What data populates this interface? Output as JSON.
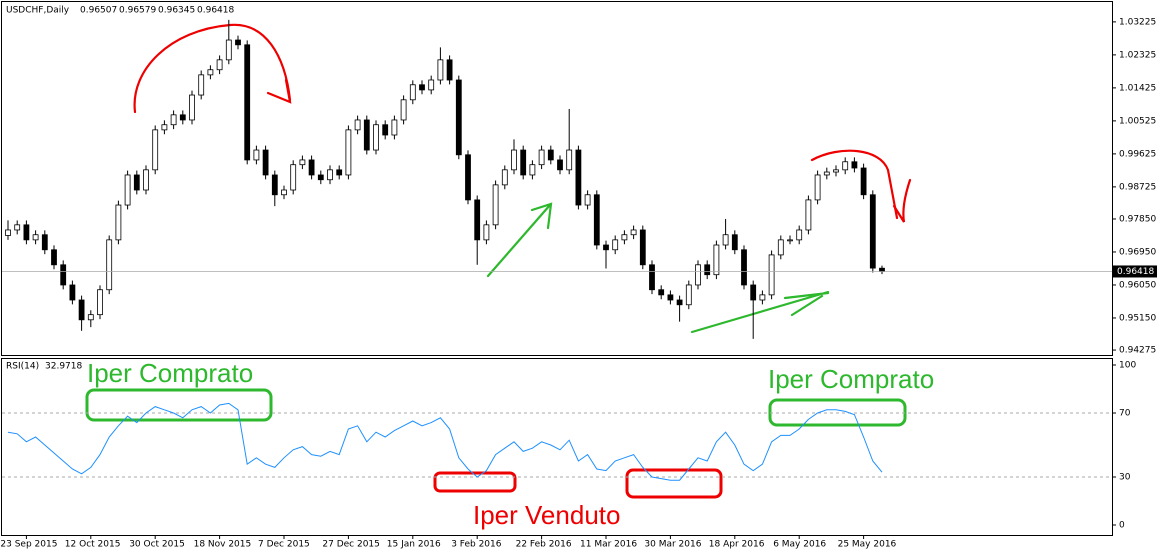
{
  "chart_data": [
    {
      "type": "candlestick",
      "title": "USDCHF,Daily",
      "ohlc": [
        [
          0.974,
          0.9781,
          0.9728,
          0.9755
        ],
        [
          0.9755,
          0.9781,
          0.9743,
          0.9769
        ],
        [
          0.9769,
          0.9781,
          0.9716,
          0.9728
        ],
        [
          0.9728,
          0.9754,
          0.9716,
          0.9742
        ],
        [
          0.9742,
          0.9754,
          0.9689,
          0.9701
        ],
        [
          0.9701,
          0.9713,
          0.9648,
          0.966
        ],
        [
          0.966,
          0.9672,
          0.9593,
          0.9605
        ],
        [
          0.9605,
          0.9617,
          0.9552,
          0.9564
        ],
        [
          0.9564,
          0.9576,
          0.948,
          0.951
        ],
        [
          0.951,
          0.9536,
          0.949,
          0.9524
        ],
        [
          0.9524,
          0.9604,
          0.9512,
          0.9592
        ],
        [
          0.9592,
          0.974,
          0.958,
          0.9728
        ],
        [
          0.9728,
          0.9835,
          0.9716,
          0.9823
        ],
        [
          0.9823,
          0.9917,
          0.9811,
          0.9905
        ],
        [
          0.9905,
          0.9917,
          0.9852,
          0.9864
        ],
        [
          0.9864,
          0.9931,
          0.9852,
          0.9919
        ],
        [
          0.9919,
          1.004,
          0.9907,
          1.0028
        ],
        [
          1.0028,
          1.0054,
          1.0016,
          1.0042
        ],
        [
          1.0042,
          1.0081,
          1.003,
          1.0069
        ],
        [
          1.0069,
          1.0081,
          1.0043,
          1.0055
        ],
        [
          1.0055,
          1.0135,
          1.0043,
          1.0123
        ],
        [
          1.0123,
          1.019,
          1.0111,
          1.0178
        ],
        [
          1.0178,
          1.0204,
          1.0166,
          1.0192
        ],
        [
          1.0192,
          1.0231,
          1.018,
          1.0219
        ],
        [
          1.0219,
          1.0328,
          1.0207,
          1.0273
        ],
        [
          1.0273,
          1.0285,
          1.0248,
          1.026
        ],
        [
          1.026,
          1.0272,
          0.9934,
          0.9946
        ],
        [
          0.9946,
          0.9985,
          0.9934,
          0.9973
        ],
        [
          0.9973,
          0.9985,
          0.9893,
          0.9905
        ],
        [
          0.9905,
          0.9917,
          0.982,
          0.9851
        ],
        [
          0.9851,
          0.9876,
          0.9839,
          0.9864
        ],
        [
          0.9864,
          0.9945,
          0.9852,
          0.9933
        ],
        [
          0.9933,
          0.9958,
          0.9921,
          0.9946
        ],
        [
          0.9946,
          0.9958,
          0.9893,
          0.9905
        ],
        [
          0.9905,
          0.9917,
          0.988,
          0.9892
        ],
        [
          0.9892,
          0.9931,
          0.988,
          0.9919
        ],
        [
          0.9919,
          0.9931,
          0.9893,
          0.9905
        ],
        [
          0.9905,
          1.004,
          0.9893,
          1.0028
        ],
        [
          1.0028,
          1.0067,
          1.0016,
          1.0055
        ],
        [
          1.0055,
          1.0067,
          0.9961,
          0.9973
        ],
        [
          0.9973,
          1.0054,
          0.9961,
          1.0042
        ],
        [
          1.0042,
          1.0054,
          1.0002,
          1.0014
        ],
        [
          1.0014,
          1.0067,
          1.0002,
          1.0055
        ],
        [
          1.0055,
          1.0122,
          1.0043,
          1.011
        ],
        [
          1.011,
          1.0163,
          1.0098,
          1.0151
        ],
        [
          1.0151,
          1.0163,
          1.0125,
          1.0137
        ],
        [
          1.0137,
          1.0176,
          1.0125,
          1.0164
        ],
        [
          1.0164,
          1.0253,
          1.0152,
          1.0219
        ],
        [
          1.0219,
          1.0231,
          1.0152,
          1.0164
        ],
        [
          1.0164,
          1.0176,
          0.9948,
          0.996
        ],
        [
          0.996,
          0.9972,
          0.9825,
          0.9837
        ],
        [
          0.9837,
          0.9849,
          0.966,
          0.9728
        ],
        [
          0.9728,
          0.9781,
          0.9716,
          0.9769
        ],
        [
          0.9769,
          0.989,
          0.9757,
          0.9878
        ],
        [
          0.9878,
          0.9931,
          0.9866,
          0.9919
        ],
        [
          0.9919,
          1.0002,
          0.9907,
          0.9973
        ],
        [
          0.9973,
          0.9985,
          0.9893,
          0.9905
        ],
        [
          0.9905,
          0.9945,
          0.9893,
          0.9933
        ],
        [
          0.9933,
          0.9985,
          0.9921,
          0.9973
        ],
        [
          0.9973,
          0.9985,
          0.9934,
          0.9946
        ],
        [
          0.9946,
          0.9958,
          0.9907,
          0.9919
        ],
        [
          0.9919,
          1.0085,
          0.9907,
          0.9973
        ],
        [
          0.9973,
          0.9985,
          0.9811,
          0.9823
        ],
        [
          0.9823,
          0.9863,
          0.9811,
          0.9851
        ],
        [
          0.9851,
          0.9863,
          0.9702,
          0.9714
        ],
        [
          0.9714,
          0.9726,
          0.965,
          0.9701
        ],
        [
          0.9701,
          0.974,
          0.9689,
          0.9728
        ],
        [
          0.9728,
          0.9754,
          0.9716,
          0.9742
        ],
        [
          0.9742,
          0.9767,
          0.973,
          0.9755
        ],
        [
          0.9755,
          0.9767,
          0.9648,
          0.966
        ],
        [
          0.966,
          0.9672,
          0.958,
          0.9592
        ],
        [
          0.9592,
          0.9604,
          0.9566,
          0.9578
        ],
        [
          0.9578,
          0.959,
          0.9552,
          0.9564
        ],
        [
          0.9564,
          0.9576,
          0.9505,
          0.9551
        ],
        [
          0.9551,
          0.9617,
          0.9539,
          0.9605
        ],
        [
          0.9605,
          0.9672,
          0.9593,
          0.966
        ],
        [
          0.966,
          0.9672,
          0.9621,
          0.9633
        ],
        [
          0.9633,
          0.9726,
          0.9621,
          0.9714
        ],
        [
          0.9714,
          0.9785,
          0.9702,
          0.9742
        ],
        [
          0.9742,
          0.9754,
          0.9689,
          0.9701
        ],
        [
          0.9701,
          0.9713,
          0.9593,
          0.9605
        ],
        [
          0.9605,
          0.9617,
          0.9458,
          0.9564
        ],
        [
          0.9564,
          0.959,
          0.9552,
          0.9578
        ],
        [
          0.9578,
          0.9699,
          0.9566,
          0.9687
        ],
        [
          0.9687,
          0.974,
          0.9675,
          0.9728
        ],
        [
          0.9728,
          0.974,
          0.9716,
          0.9728
        ],
        [
          0.9728,
          0.9767,
          0.9716,
          0.9755
        ],
        [
          0.9755,
          0.9849,
          0.9743,
          0.9837
        ],
        [
          0.9837,
          0.9917,
          0.9825,
          0.9905
        ],
        [
          0.9905,
          0.9925,
          0.9893,
          0.9913
        ],
        [
          0.9913,
          0.9931,
          0.9901,
          0.9919
        ],
        [
          0.9919,
          0.9953,
          0.9907,
          0.9941
        ],
        [
          0.9941,
          0.9953,
          0.9912,
          0.9924
        ],
        [
          0.9924,
          0.9936,
          0.9839,
          0.9851
        ],
        [
          0.9851,
          0.9863,
          0.9639,
          0.9651
        ],
        [
          0.96507,
          0.96579,
          0.96345,
          0.96418
        ]
      ],
      "up_color": "#ffffff",
      "down_color": "#000000",
      "outline_color": "#000000",
      "ylim": [
        0.9414,
        1.0374
      ],
      "yticks": [
        1.03225,
        1.02325,
        1.01425,
        1.00525,
        0.99625,
        0.98725,
        {
          "value": 0.9785,
          "label": "0.97850"
        },
        {
          "value": 0.9695,
          "label": "0.96950"
        },
        {
          "value": 0.9605,
          "label": "0.96050"
        },
        {
          "value": 0.9515,
          "label": "0.95150"
        },
        0.94275
      ]
    },
    {
      "type": "line",
      "title": "RSI(14)",
      "categories": [
        null,
        null,
        "23 Sep 2015",
        null,
        null,
        null,
        null,
        null,
        null,
        "12 Oct 2015",
        null,
        null,
        null,
        null,
        null,
        null,
        "30 Oct 2015",
        null,
        null,
        null,
        null,
        null,
        null,
        "18 Nov 2015",
        null,
        null,
        null,
        null,
        null,
        null,
        "7 Dec 2015",
        null,
        null,
        null,
        null,
        null,
        null,
        "27 Dec 2015",
        null,
        null,
        null,
        null,
        null,
        null,
        "15 Jan 2016",
        null,
        null,
        null,
        null,
        null,
        null,
        "3 Feb 2016",
        null,
        null,
        null,
        null,
        null,
        null,
        "22 Feb 2016",
        null,
        null,
        null,
        null,
        null,
        null,
        "11 Mar 2016",
        null,
        null,
        null,
        null,
        null,
        null,
        "30 Mar 2016",
        null,
        null,
        null,
        null,
        null,
        null,
        "18 Apr 2016",
        null,
        null,
        null,
        null,
        null,
        null,
        "6 May 2016",
        null,
        null,
        null,
        null,
        null,
        null,
        "25 May 2016",
        null,
        null
      ],
      "values": [
        58,
        57,
        52,
        55,
        50,
        45,
        40,
        35,
        32,
        36,
        44,
        55,
        62,
        68,
        64,
        70,
        74,
        72,
        70,
        67,
        72,
        74,
        70,
        75,
        76,
        72,
        38,
        42,
        38,
        36,
        42,
        47,
        49,
        44,
        43,
        46,
        44,
        60,
        62,
        52,
        58,
        55,
        59,
        62,
        65,
        62,
        64,
        67,
        60,
        42,
        35,
        30,
        34,
        44,
        48,
        52,
        46,
        48,
        52,
        50,
        47,
        53,
        40,
        44,
        35,
        34,
        40,
        42,
        44,
        36,
        30,
        29,
        28,
        28,
        35,
        42,
        40,
        52,
        58,
        50,
        38,
        34,
        38,
        52,
        56,
        56,
        60,
        66,
        70,
        72,
        72,
        71,
        69,
        55,
        40,
        32.9718
      ],
      "color": "#1e90ff",
      "ylim": [
        0,
        100
      ],
      "yticks": [
        100,
        70,
        30,
        0
      ],
      "levels": [
        70,
        30
      ]
    }
  ],
  "annotations": [
    "Iper Comprato",
    "Iper Comprato",
    "Iper Venduto"
  ]
}
